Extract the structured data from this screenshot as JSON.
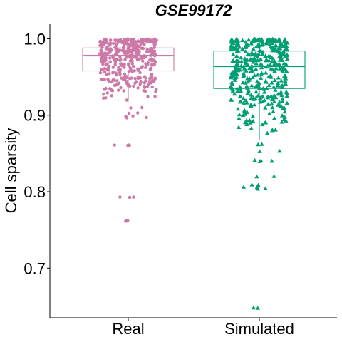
{
  "chart_data": {
    "type": "box-jitter",
    "title": "GSE99172",
    "xlabel": "",
    "ylabel": "Cell sparsity",
    "categories": [
      "Real",
      "Simulated"
    ],
    "ylim": [
      0.635,
      1.02
    ],
    "y_ticks": [
      0.7,
      0.8,
      0.9,
      1.0
    ],
    "y_tick_labels": [
      "0.7",
      "0.8",
      "0.9",
      "1.0"
    ],
    "grid": false,
    "legend": "none",
    "series": [
      {
        "category": "Real",
        "color": "#CC79A7",
        "marker": "circle",
        "box": {
          "q1": 0.958,
          "median": 0.978,
          "q3": 0.988,
          "whisker_low": 0.918,
          "whisker_high": 1.0
        },
        "outliers": [
          0.899,
          0.897,
          0.903,
          0.91,
          0.861,
          0.861,
          0.793,
          0.793,
          0.762,
          0.762
        ],
        "point_count": 400
      },
      {
        "category": "Simulated",
        "color": "#009E73",
        "marker": "triangle",
        "box": {
          "q1": 0.935,
          "median": 0.964,
          "q3": 0.984,
          "whisker_low": 0.868,
          "whisker_high": 1.0
        },
        "outliers": [
          0.862,
          0.853,
          0.841,
          0.84,
          0.82,
          0.809,
          0.806,
          0.804,
          0.648
        ],
        "point_count": 420
      }
    ]
  }
}
